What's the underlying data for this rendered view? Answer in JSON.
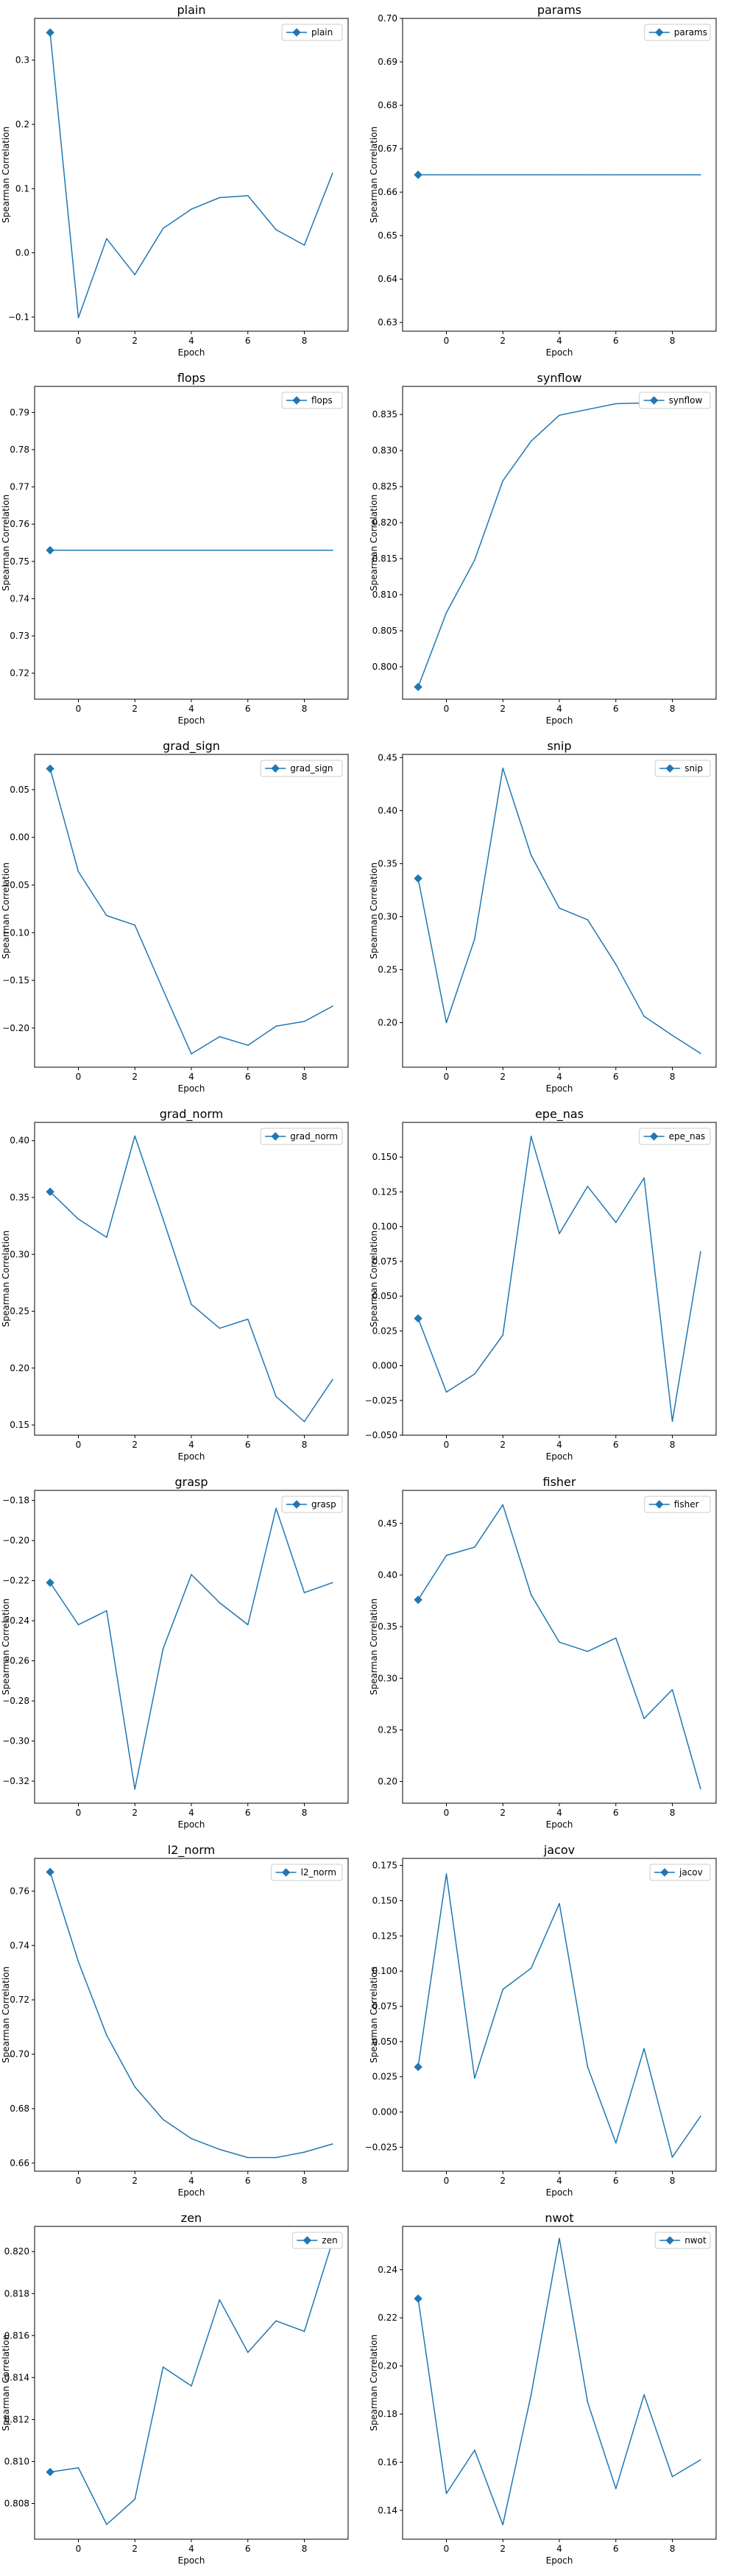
{
  "style": {
    "line_color": "#1f77b4",
    "axes_color": "#000000",
    "background": "#ffffff"
  },
  "chart_data": [
    {
      "type": "line",
      "title": "plain",
      "xlabel": "Epoch",
      "ylabel": "Spearman Correlation",
      "legend": "plain",
      "legend_position": "top-right",
      "grid": false,
      "x": [
        -1,
        0,
        1,
        2,
        3,
        4,
        5,
        6,
        7,
        8,
        9
      ],
      "values": [
        0.343,
        -0.101,
        0.022,
        -0.034,
        0.038,
        0.068,
        0.086,
        0.089,
        0.036,
        0.012,
        0.124
      ],
      "ylim": [
        -0.122,
        0.365
      ],
      "yticks": [
        -0.1,
        0.0,
        0.1,
        0.2,
        0.3
      ],
      "ytick_labels": [
        "−0.1",
        "0.0",
        "0.1",
        "0.2",
        "0.3"
      ],
      "xlim": [
        -1.55,
        9.55
      ],
      "xticks": [
        0,
        2,
        4,
        6,
        8
      ]
    },
    {
      "type": "line",
      "title": "params",
      "xlabel": "Epoch",
      "ylabel": "Spearman Correlation",
      "legend": "params",
      "legend_position": "top-right",
      "grid": false,
      "x": [
        -1,
        0,
        1,
        2,
        3,
        4,
        5,
        6,
        7,
        8,
        9
      ],
      "values": [
        0.664,
        0.664,
        0.664,
        0.664,
        0.664,
        0.664,
        0.664,
        0.664,
        0.664,
        0.664,
        0.664
      ],
      "ylim": [
        0.628,
        0.7
      ],
      "yticks": [
        0.63,
        0.64,
        0.65,
        0.66,
        0.67,
        0.68,
        0.69,
        0.7
      ],
      "ytick_labels": [
        "0.63",
        "0.64",
        "0.65",
        "0.66",
        "0.67",
        "0.68",
        "0.69",
        "0.70"
      ],
      "xlim": [
        -1.55,
        9.55
      ],
      "xticks": [
        0,
        2,
        4,
        6,
        8
      ]
    },
    {
      "type": "line",
      "title": "flops",
      "xlabel": "Epoch",
      "ylabel": "Spearman Correlation",
      "legend": "flops",
      "legend_position": "top-right",
      "grid": false,
      "x": [
        -1,
        0,
        1,
        2,
        3,
        4,
        5,
        6,
        7,
        8,
        9
      ],
      "values": [
        0.753,
        0.753,
        0.753,
        0.753,
        0.753,
        0.753,
        0.753,
        0.753,
        0.753,
        0.753,
        0.753
      ],
      "ylim": [
        0.713,
        0.797
      ],
      "yticks": [
        0.72,
        0.73,
        0.74,
        0.75,
        0.76,
        0.77,
        0.78,
        0.79
      ],
      "ytick_labels": [
        "0.72",
        "0.73",
        "0.74",
        "0.75",
        "0.76",
        "0.77",
        "0.78",
        "0.79"
      ],
      "xlim": [
        -1.55,
        9.55
      ],
      "xticks": [
        0,
        2,
        4,
        6,
        8
      ]
    },
    {
      "type": "line",
      "title": "synflow",
      "xlabel": "Epoch",
      "ylabel": "Spearman Correlation",
      "legend": "synflow",
      "legend_position": "top-right",
      "grid": false,
      "x": [
        -1,
        0,
        1,
        2,
        3,
        4,
        5,
        6,
        7,
        8,
        9
      ],
      "values": [
        0.7972,
        0.8075,
        0.8148,
        0.8258,
        0.8313,
        0.8349,
        0.8357,
        0.8365,
        0.8366,
        0.837,
        0.8372
      ],
      "ylim": [
        0.7955,
        0.8389
      ],
      "yticks": [
        0.8,
        0.805,
        0.81,
        0.815,
        0.82,
        0.825,
        0.83,
        0.835
      ],
      "ytick_labels": [
        "0.800",
        "0.805",
        "0.810",
        "0.815",
        "0.820",
        "0.825",
        "0.830",
        "0.835"
      ],
      "xlim": [
        -1.55,
        9.55
      ],
      "xticks": [
        0,
        2,
        4,
        6,
        8
      ]
    },
    {
      "type": "line",
      "title": "grad_sign",
      "xlabel": "Epoch",
      "ylabel": "Spearman Correlation",
      "legend": "grad_sign",
      "legend_position": "top-right",
      "grid": false,
      "x": [
        -1,
        0,
        1,
        2,
        3,
        4,
        5,
        6,
        7,
        8,
        9
      ],
      "values": [
        0.072,
        -0.036,
        -0.082,
        -0.092,
        -0.16,
        -0.227,
        -0.209,
        -0.218,
        -0.198,
        -0.193,
        -0.177
      ],
      "ylim": [
        -0.241,
        0.087
      ],
      "yticks": [
        -0.2,
        -0.15,
        -0.1,
        -0.05,
        0.0,
        0.05
      ],
      "ytick_labels": [
        "−0.20",
        "−0.15",
        "−0.10",
        "−0.05",
        "0.00",
        "0.05"
      ],
      "xlim": [
        -1.55,
        9.55
      ],
      "xticks": [
        0,
        2,
        4,
        6,
        8
      ]
    },
    {
      "type": "line",
      "title": "snip",
      "xlabel": "Epoch",
      "ylabel": "Spearman Correlation",
      "legend": "snip",
      "legend_position": "top-right",
      "grid": false,
      "x": [
        -1,
        0,
        1,
        2,
        3,
        4,
        5,
        6,
        7,
        8,
        9
      ],
      "values": [
        0.336,
        0.2,
        0.279,
        0.44,
        0.358,
        0.308,
        0.297,
        0.255,
        0.206,
        0.188,
        0.171
      ],
      "ylim": [
        0.158,
        0.453
      ],
      "yticks": [
        0.2,
        0.25,
        0.3,
        0.35,
        0.4,
        0.45
      ],
      "ytick_labels": [
        "0.20",
        "0.25",
        "0.30",
        "0.35",
        "0.40",
        "0.45"
      ],
      "xlim": [
        -1.55,
        9.55
      ],
      "xticks": [
        0,
        2,
        4,
        6,
        8
      ]
    },
    {
      "type": "line",
      "title": "grad_norm",
      "xlabel": "Epoch",
      "ylabel": "Spearman Correlation",
      "legend": "grad_norm",
      "legend_position": "top-right",
      "grid": false,
      "x": [
        -1,
        0,
        1,
        2,
        3,
        4,
        5,
        6,
        7,
        8,
        9
      ],
      "values": [
        0.355,
        0.331,
        0.315,
        0.404,
        0.331,
        0.256,
        0.235,
        0.243,
        0.175,
        0.153,
        0.19
      ],
      "ylim": [
        0.141,
        0.416
      ],
      "yticks": [
        0.15,
        0.2,
        0.25,
        0.3,
        0.35,
        0.4
      ],
      "ytick_labels": [
        "0.15",
        "0.20",
        "0.25",
        "0.30",
        "0.35",
        "0.40"
      ],
      "xlim": [
        -1.55,
        9.55
      ],
      "xticks": [
        0,
        2,
        4,
        6,
        8
      ]
    },
    {
      "type": "line",
      "title": "epe_nas",
      "xlabel": "Epoch",
      "ylabel": "Spearman Correlation",
      "legend": "epe_nas",
      "legend_position": "top-right",
      "grid": false,
      "x": [
        -1,
        0,
        1,
        2,
        3,
        4,
        5,
        6,
        7,
        8,
        9
      ],
      "values": [
        0.034,
        -0.019,
        -0.006,
        0.022,
        0.165,
        0.095,
        0.129,
        0.103,
        0.135,
        -0.04,
        0.082
      ],
      "ylim": [
        -0.05,
        0.175
      ],
      "yticks": [
        -0.05,
        -0.025,
        0.0,
        0.025,
        0.05,
        0.075,
        0.1,
        0.125,
        0.15
      ],
      "ytick_labels": [
        "−0.050",
        "−0.025",
        "0.000",
        "0.025",
        "0.050",
        "0.075",
        "0.100",
        "0.125",
        "0.150"
      ],
      "xlim": [
        -1.55,
        9.55
      ],
      "xticks": [
        0,
        2,
        4,
        6,
        8
      ]
    },
    {
      "type": "line",
      "title": "grasp",
      "xlabel": "Epoch",
      "ylabel": "Spearman Correlation",
      "legend": "grasp",
      "legend_position": "top-right",
      "grid": false,
      "x": [
        -1,
        0,
        1,
        2,
        3,
        4,
        5,
        6,
        7,
        8,
        9
      ],
      "values": [
        -0.221,
        -0.242,
        -0.235,
        -0.324,
        -0.254,
        -0.217,
        -0.231,
        -0.242,
        -0.184,
        -0.226,
        -0.221
      ],
      "ylim": [
        -0.331,
        -0.175
      ],
      "yticks": [
        -0.32,
        -0.3,
        -0.28,
        -0.26,
        -0.24,
        -0.22,
        -0.2,
        -0.18
      ],
      "ytick_labels": [
        "−0.32",
        "−0.30",
        "−0.28",
        "−0.26",
        "−0.24",
        "−0.22",
        "−0.20",
        "−0.18"
      ],
      "xlim": [
        -1.55,
        9.55
      ],
      "xticks": [
        0,
        2,
        4,
        6,
        8
      ]
    },
    {
      "type": "line",
      "title": "fisher",
      "xlabel": "Epoch",
      "ylabel": "Spearman Correlation",
      "legend": "fisher",
      "legend_position": "top-right",
      "grid": false,
      "x": [
        -1,
        0,
        1,
        2,
        3,
        4,
        5,
        6,
        7,
        8,
        9
      ],
      "values": [
        0.376,
        0.419,
        0.427,
        0.468,
        0.381,
        0.335,
        0.326,
        0.339,
        0.261,
        0.289,
        0.193
      ],
      "ylim": [
        0.179,
        0.482
      ],
      "yticks": [
        0.2,
        0.25,
        0.3,
        0.35,
        0.4,
        0.45
      ],
      "ytick_labels": [
        "0.20",
        "0.25",
        "0.30",
        "0.35",
        "0.40",
        "0.45"
      ],
      "xlim": [
        -1.55,
        9.55
      ],
      "xticks": [
        0,
        2,
        4,
        6,
        8
      ]
    },
    {
      "type": "line",
      "title": "l2_norm",
      "xlabel": "Epoch",
      "ylabel": "Spearman Correlation",
      "legend": "l2_norm",
      "legend_position": "top-right",
      "grid": false,
      "x": [
        -1,
        0,
        1,
        2,
        3,
        4,
        5,
        6,
        7,
        8,
        9
      ],
      "values": [
        0.767,
        0.734,
        0.707,
        0.688,
        0.676,
        0.669,
        0.665,
        0.662,
        0.662,
        0.664,
        0.667
      ],
      "ylim": [
        0.657,
        0.772
      ],
      "yticks": [
        0.66,
        0.68,
        0.7,
        0.72,
        0.74,
        0.76
      ],
      "ytick_labels": [
        "0.66",
        "0.68",
        "0.70",
        "0.72",
        "0.74",
        "0.76"
      ],
      "xlim": [
        -1.55,
        9.55
      ],
      "xticks": [
        0,
        2,
        4,
        6,
        8
      ]
    },
    {
      "type": "line",
      "title": "jacov",
      "xlabel": "Epoch",
      "ylabel": "Spearman Correlation",
      "legend": "jacov",
      "legend_position": "top-right",
      "grid": false,
      "x": [
        -1,
        0,
        1,
        2,
        3,
        4,
        5,
        6,
        7,
        8,
        9
      ],
      "values": [
        0.032,
        0.169,
        0.024,
        0.087,
        0.102,
        0.148,
        0.032,
        -0.022,
        0.045,
        -0.032,
        -0.003
      ],
      "ylim": [
        -0.042,
        0.18
      ],
      "yticks": [
        -0.025,
        0.0,
        0.025,
        0.05,
        0.075,
        0.1,
        0.125,
        0.15,
        0.175
      ],
      "ytick_labels": [
        "−0.025",
        "0.000",
        "0.025",
        "0.050",
        "0.075",
        "0.100",
        "0.125",
        "0.150",
        "0.175"
      ],
      "xlim": [
        -1.55,
        9.55
      ],
      "xticks": [
        0,
        2,
        4,
        6,
        8
      ]
    },
    {
      "type": "line",
      "title": "zen",
      "xlabel": "Epoch",
      "ylabel": "Spearman Correlation",
      "legend": "zen",
      "legend_position": "top-right",
      "grid": false,
      "x": [
        -1,
        0,
        1,
        2,
        3,
        4,
        5,
        6,
        7,
        8,
        9
      ],
      "values": [
        0.8095,
        0.8097,
        0.807,
        0.8082,
        0.8145,
        0.8136,
        0.8177,
        0.8152,
        0.8167,
        0.8162,
        0.8205
      ],
      "ylim": [
        0.8063,
        0.8212
      ],
      "yticks": [
        0.808,
        0.81,
        0.812,
        0.814,
        0.816,
        0.818,
        0.82
      ],
      "ytick_labels": [
        "0.808",
        "0.810",
        "0.812",
        "0.814",
        "0.816",
        "0.818",
        "0.820"
      ],
      "xlim": [
        -1.55,
        9.55
      ],
      "xticks": [
        0,
        2,
        4,
        6,
        8
      ]
    },
    {
      "type": "line",
      "title": "nwot",
      "xlabel": "Epoch",
      "ylabel": "Spearman Correlation",
      "legend": "nwot",
      "legend_position": "top-right",
      "grid": false,
      "x": [
        -1,
        0,
        1,
        2,
        3,
        4,
        5,
        6,
        7,
        8,
        9
      ],
      "values": [
        0.228,
        0.147,
        0.165,
        0.134,
        0.188,
        0.253,
        0.185,
        0.149,
        0.188,
        0.154,
        0.161
      ],
      "ylim": [
        0.128,
        0.258
      ],
      "yticks": [
        0.14,
        0.16,
        0.18,
        0.2,
        0.22,
        0.24
      ],
      "ytick_labels": [
        "0.14",
        "0.16",
        "0.18",
        "0.20",
        "0.22",
        "0.24"
      ],
      "xlim": [
        -1.55,
        9.55
      ],
      "xticks": [
        0,
        2,
        4,
        6,
        8
      ]
    }
  ]
}
